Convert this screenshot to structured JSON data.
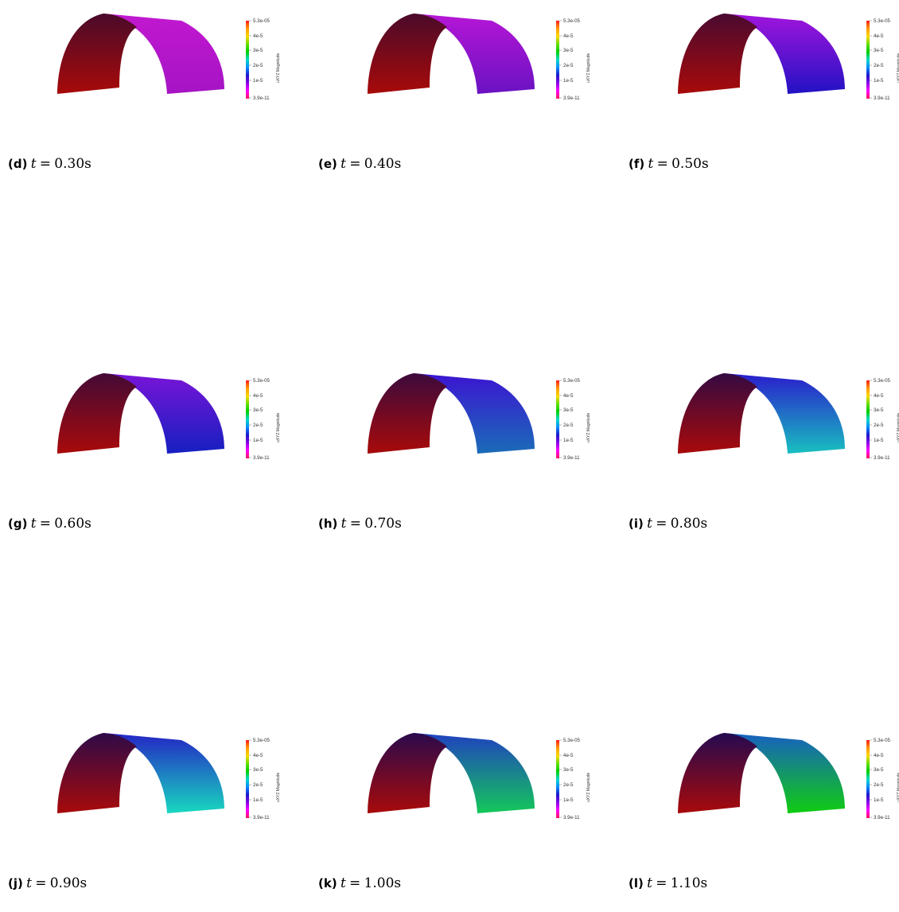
{
  "colorbar": {
    "max_label": "5.3e-05",
    "tick_labels": [
      "4e-5",
      "3e-5",
      "2e-5",
      "1e-5"
    ],
    "min_label": "3.9e-11",
    "title": "uXYZ Magnitude",
    "colors": [
      "#ff1a1a",
      "#ff9900",
      "#ffd800",
      "#66e000",
      "#00d000",
      "#00d8c8",
      "#0a8cff",
      "#1a1acc",
      "#8a00e6",
      "#ff00ff",
      "#ff1a5a"
    ]
  },
  "panels": [
    {
      "letter": "(d)",
      "t_symbol": "t",
      "equals": "=",
      "value": "0.30s",
      "right_top": "#c218d0",
      "right_bottom": "#a514c4",
      "left_top": "#4a0a2a",
      "left_bottom": "#a80a0a"
    },
    {
      "letter": "(e)",
      "t_symbol": "t",
      "equals": "=",
      "value": "0.40s",
      "right_top": "#b616d6",
      "right_bottom": "#6a12c2",
      "left_top": "#4a0a2a",
      "left_bottom": "#a80a0a"
    },
    {
      "letter": "(f)",
      "t_symbol": "t",
      "equals": "=",
      "value": "0.50s",
      "right_top": "#a214dc",
      "right_bottom": "#2212c4",
      "left_top": "#4a0a30",
      "left_bottom": "#a80a0a"
    },
    {
      "letter": "(g)",
      "t_symbol": "t",
      "equals": "=",
      "value": "0.60s",
      "right_top": "#7a14d8",
      "right_bottom": "#1520c0",
      "left_top": "#440a36",
      "left_bottom": "#a80a0a"
    },
    {
      "letter": "(h)",
      "t_symbol": "t",
      "equals": "=",
      "value": "0.70s",
      "right_top": "#3c14d2",
      "right_bottom": "#1a6cb8",
      "left_top": "#3c0a3c",
      "left_bottom": "#a80a0a"
    },
    {
      "letter": "(i)",
      "t_symbol": "t",
      "equals": "=",
      "value": "0.80s",
      "right_top": "#2a1ccc",
      "right_bottom": "#18c0c0",
      "left_top": "#340a42",
      "left_bottom": "#a80a0a"
    },
    {
      "letter": "(j)",
      "t_symbol": "t",
      "equals": "=",
      "value": "0.90s",
      "right_top": "#2424c4",
      "right_bottom": "#18d8c0",
      "left_top": "#2e0a48",
      "left_bottom": "#a80a0a"
    },
    {
      "letter": "(k)",
      "t_symbol": "t",
      "equals": "=",
      "value": "1.00s",
      "right_top": "#2040c0",
      "right_bottom": "#14c85a",
      "left_top": "#2a0a4c",
      "left_bottom": "#a80a0a"
    },
    {
      "letter": "(l)",
      "t_symbol": "t",
      "equals": "=",
      "value": "1.10s",
      "right_top": "#1860c2",
      "right_bottom": "#10cc10",
      "left_top": "#240a50",
      "left_bottom": "#a80a0a"
    }
  ]
}
